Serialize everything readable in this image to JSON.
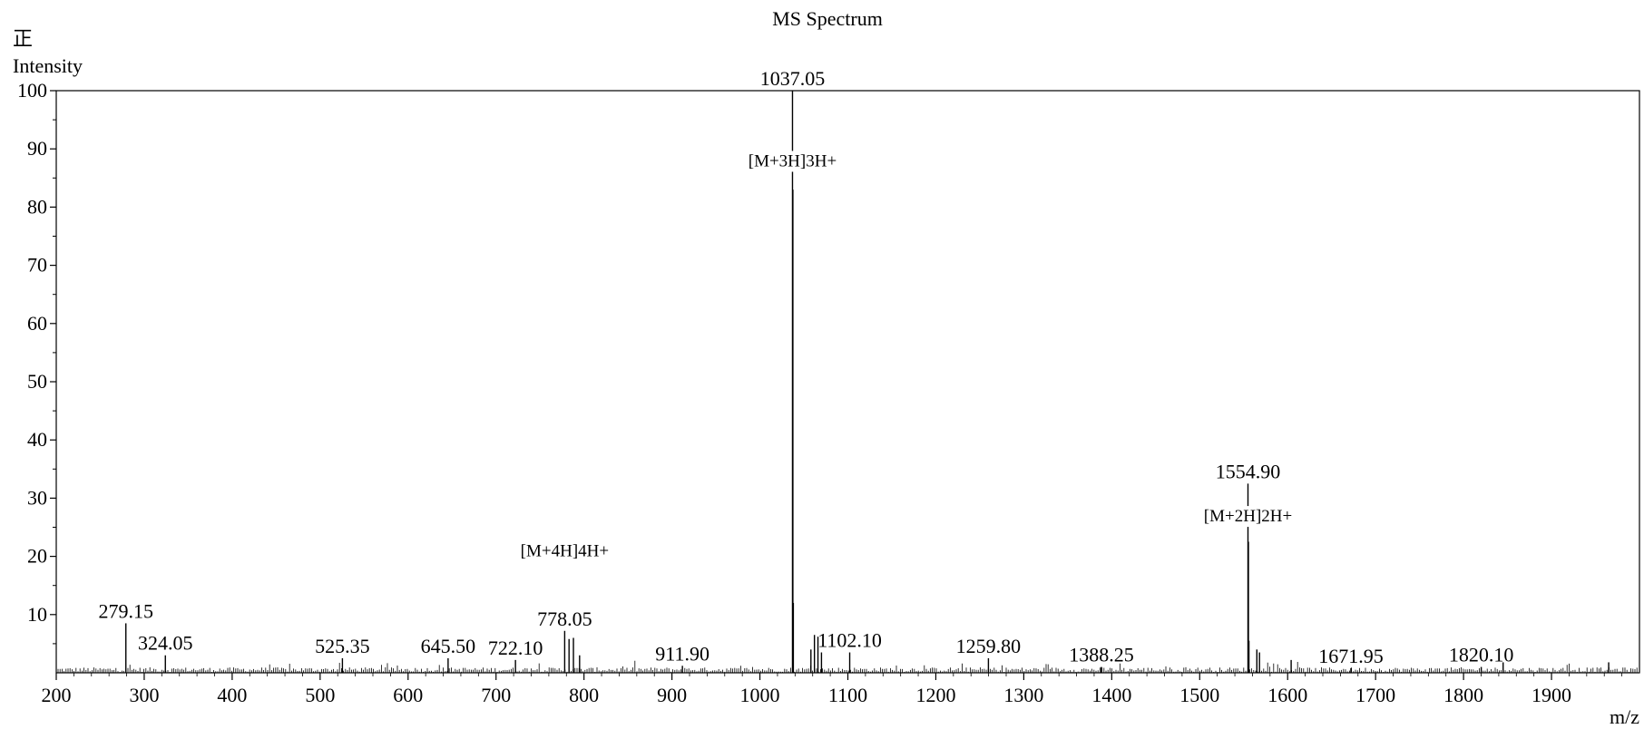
{
  "chart_data": {
    "type": "bar",
    "title": "MS Spectrum",
    "mode_label": "正",
    "ylabel": "Intensity",
    "xlabel": "m/z",
    "xlim": [
      200,
      2000
    ],
    "ylim": [
      0,
      100
    ],
    "x_ticks": [
      200,
      300,
      400,
      500,
      600,
      700,
      800,
      900,
      1000,
      1100,
      1200,
      1300,
      1400,
      1500,
      1600,
      1700,
      1800,
      1900
    ],
    "y_ticks": [
      10,
      20,
      30,
      40,
      50,
      60,
      70,
      80,
      90,
      100
    ],
    "peaks": [
      {
        "x": 1037.05,
        "y": 100,
        "label": "1037.05"
      },
      {
        "x": 1037.5,
        "y": 83
      },
      {
        "x": 1038.0,
        "y": 12
      },
      {
        "x": 1554.9,
        "y": 32.5,
        "label": "1554.90"
      },
      {
        "x": 1555.4,
        "y": 22.5
      },
      {
        "x": 1556.0,
        "y": 5.5
      },
      {
        "x": 279.15,
        "y": 8.5,
        "label": "279.15"
      },
      {
        "x": 324.05,
        "y": 3.0,
        "label": "324.05"
      },
      {
        "x": 525.35,
        "y": 2.5,
        "label": "525.35"
      },
      {
        "x": 645.5,
        "y": 2.5,
        "label": "645.50"
      },
      {
        "x": 722.1,
        "y": 2.2,
        "label": "722.10"
      },
      {
        "x": 778.05,
        "y": 7.2,
        "label": "778.05"
      },
      {
        "x": 783.0,
        "y": 5.8
      },
      {
        "x": 788.0,
        "y": 6.0
      },
      {
        "x": 795.0,
        "y": 3.0
      },
      {
        "x": 911.9,
        "y": 1.2,
        "label": "911.90"
      },
      {
        "x": 1058.0,
        "y": 4.0
      },
      {
        "x": 1062.0,
        "y": 6.5
      },
      {
        "x": 1066.0,
        "y": 6.2
      },
      {
        "x": 1070.0,
        "y": 3.5
      },
      {
        "x": 1102.1,
        "y": 3.5,
        "label": "1102.10"
      },
      {
        "x": 1259.8,
        "y": 2.5,
        "label": "1259.80"
      },
      {
        "x": 1388.25,
        "y": 1.0,
        "label": "1388.25"
      },
      {
        "x": 1565.0,
        "y": 4.0
      },
      {
        "x": 1568.0,
        "y": 3.5
      },
      {
        "x": 1604.0,
        "y": 2.2
      },
      {
        "x": 1671.95,
        "y": 0.8,
        "label": "1671.95"
      },
      {
        "x": 1820.1,
        "y": 1.0,
        "label": "1820.10"
      },
      {
        "x": 1845.0,
        "y": 1.8
      },
      {
        "x": 1965.0,
        "y": 1.8
      }
    ],
    "annotations": [
      {
        "text": "[M+3H]3H+",
        "x": 1037.05,
        "y": 87
      },
      {
        "text": "[M+2H]2H+",
        "x": 1554.9,
        "y": 26
      },
      {
        "text": "[M+4H]4H+",
        "x": 778.05,
        "y": 20
      }
    ],
    "grid": false
  }
}
